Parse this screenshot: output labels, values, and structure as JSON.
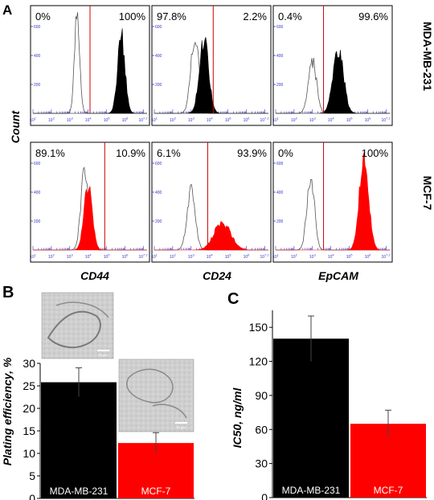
{
  "panel_letters": {
    "a": "A",
    "b": "B",
    "c": "C"
  },
  "flow": {
    "y_axis_label": "Count",
    "row_labels": [
      "MDA-MB-231",
      "MCF-7"
    ],
    "marker_labels": [
      "CD44",
      "CD24",
      "EpCAM"
    ],
    "tick_labels": [
      "10",
      "10",
      "10",
      "10",
      "10",
      "10",
      "10"
    ],
    "tick_exponents": [
      "1",
      "2",
      "3",
      "4",
      "5",
      "6",
      "7.2"
    ],
    "y_ticks": [
      "200",
      "400",
      "600"
    ],
    "colors": {
      "mda_fill": "#000000",
      "mcf_fill": "#ff0000",
      "gate": "#cc0000",
      "axis": "#3333cc",
      "isotype": "#555555"
    }
  },
  "chart_data": [
    {
      "type": "area",
      "subplot": "MDA-MB-231 / CD44",
      "xlim": [
        1,
        7.2
      ],
      "ylim": [
        0,
        700
      ],
      "x_scale": "log10",
      "gate_log10": 4.1,
      "percent_left": "0%",
      "percent_right": "100%",
      "series": [
        {
          "name": "",
          "style": "outline",
          "peak_log10": 3.4,
          "peak_count": 710,
          "width": 0.14
        },
        {
          "name": "",
          "style": "filled",
          "peak_log10": 5.8,
          "peak_count": 540,
          "width": 0.2
        }
      ]
    },
    {
      "type": "area",
      "subplot": "MDA-MB-231 / CD24",
      "xlim": [
        1,
        7.2
      ],
      "ylim": [
        0,
        700
      ],
      "x_scale": "log10",
      "gate_log10": 4.2,
      "percent_left": "97.8%",
      "percent_right": "2.2%",
      "series": [
        {
          "name": "",
          "style": "outline",
          "peak_log10": 3.2,
          "peak_count": 530,
          "width": 0.22
        },
        {
          "name": "",
          "style": "filled",
          "peak_log10": 3.7,
          "peak_count": 500,
          "width": 0.25
        }
      ]
    },
    {
      "type": "area",
      "subplot": "MDA-MB-231 / EpCAM",
      "xlim": [
        1,
        7.2
      ],
      "ylim": [
        0,
        700
      ],
      "x_scale": "log10",
      "gate_log10": 3.6,
      "percent_left": "0.4%",
      "percent_right": "99.6%",
      "series": [
        {
          "name": "",
          "style": "outline",
          "peak_log10": 3.0,
          "peak_count": 360,
          "width": 0.22
        },
        {
          "name": "",
          "style": "filled",
          "peak_log10": 4.4,
          "peak_count": 450,
          "width": 0.28
        }
      ]
    },
    {
      "type": "area",
      "subplot": "MCF-7 / CD44",
      "xlim": [
        1,
        7.2
      ],
      "ylim": [
        0,
        700
      ],
      "x_scale": "log10",
      "gate_log10": 4.9,
      "percent_left": "89.1%",
      "percent_right": "10.9%",
      "series": [
        {
          "name": "",
          "style": "outline",
          "peak_log10": 3.8,
          "peak_count": 520,
          "width": 0.2
        },
        {
          "name": "",
          "style": "filled",
          "peak_log10": 4.0,
          "peak_count": 440,
          "width": 0.22
        }
      ]
    },
    {
      "type": "area",
      "subplot": "MCF-7 / CD24",
      "xlim": [
        1,
        7.2
      ],
      "ylim": [
        0,
        700
      ],
      "x_scale": "log10",
      "gate_log10": 3.9,
      "percent_left": "6.1%",
      "percent_right": "93.9%",
      "series": [
        {
          "name": "",
          "style": "outline",
          "peak_log10": 3.0,
          "peak_count": 420,
          "width": 0.22
        },
        {
          "name": "",
          "style": "filled",
          "peak_log10": 4.7,
          "peak_count": 190,
          "width": 0.45
        }
      ]
    },
    {
      "type": "area",
      "subplot": "MCF-7 / EpCAM",
      "xlim": [
        1,
        7.2
      ],
      "ylim": [
        0,
        700
      ],
      "x_scale": "log10",
      "gate_log10": 3.6,
      "percent_left": "0%",
      "percent_right": "100%",
      "series": [
        {
          "name": "",
          "style": "outline",
          "peak_log10": 2.9,
          "peak_count": 520,
          "width": 0.2
        },
        {
          "name": "",
          "style": "filled",
          "peak_log10": 5.8,
          "peak_count": 640,
          "width": 0.25
        }
      ]
    },
    {
      "type": "bar",
      "panel": "B",
      "categories": [
        "MDA-MB-231",
        "MCF-7"
      ],
      "values": [
        25.8,
        12.3
      ],
      "errors": [
        3.2,
        2.3
      ],
      "colors": [
        "#000000",
        "#ff0000"
      ],
      "ylabel": "Plating efficiency, %",
      "ylim": [
        0,
        30
      ],
      "yticks": [
        "0",
        "5",
        "10",
        "15",
        "20",
        "25",
        "30"
      ],
      "insets": [
        "20 µm",
        "20 µm"
      ]
    },
    {
      "type": "bar",
      "panel": "C",
      "categories": [
        "MDA-MB-231",
        "MCF-7"
      ],
      "values": [
        140,
        65
      ],
      "errors": [
        20,
        12
      ],
      "colors": [
        "#000000",
        "#ff0000"
      ],
      "ylabel": "IC50, ng/ml",
      "ylim": [
        0,
        165
      ],
      "yticks": [
        "0",
        "30",
        "60",
        "90",
        "120",
        "150"
      ]
    }
  ]
}
